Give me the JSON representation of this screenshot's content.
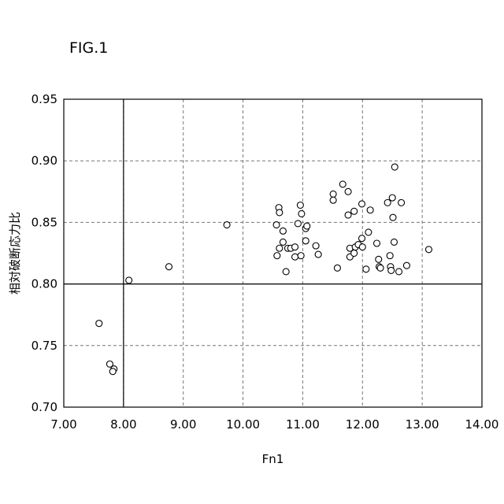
{
  "figure_label": "FIG.1",
  "chart_data": {
    "type": "scatter",
    "xlabel": "Fn1",
    "ylabel": "相対破断応力比",
    "xlim": [
      7.0,
      14.0
    ],
    "ylim": [
      0.7,
      0.95
    ],
    "xticks": [
      "7.00",
      "8.00",
      "9.00",
      "10.00",
      "11.00",
      "12.00",
      "13.00",
      "14.00"
    ],
    "yticks": [
      "0.70",
      "0.75",
      "0.80",
      "0.85",
      "0.90",
      "0.95"
    ],
    "grid": true,
    "reference_lines": {
      "x": 8.0,
      "y": 0.8
    },
    "marker": "open-circle",
    "points": [
      [
        7.59,
        0.768
      ],
      [
        7.77,
        0.735
      ],
      [
        7.84,
        0.731
      ],
      [
        7.82,
        0.729
      ],
      [
        8.09,
        0.803
      ],
      [
        8.76,
        0.814
      ],
      [
        9.73,
        0.848
      ],
      [
        10.56,
        0.848
      ],
      [
        10.6,
        0.862
      ],
      [
        10.61,
        0.858
      ],
      [
        10.61,
        0.829
      ],
      [
        10.57,
        0.823
      ],
      [
        10.67,
        0.843
      ],
      [
        10.67,
        0.834
      ],
      [
        10.72,
        0.81
      ],
      [
        10.75,
        0.829
      ],
      [
        10.8,
        0.829
      ],
      [
        10.87,
        0.83
      ],
      [
        10.87,
        0.822
      ],
      [
        10.92,
        0.849
      ],
      [
        10.96,
        0.864
      ],
      [
        10.98,
        0.857
      ],
      [
        10.97,
        0.823
      ],
      [
        11.05,
        0.845
      ],
      [
        11.07,
        0.847
      ],
      [
        11.05,
        0.835
      ],
      [
        11.22,
        0.831
      ],
      [
        11.26,
        0.824
      ],
      [
        11.51,
        0.873
      ],
      [
        11.51,
        0.868
      ],
      [
        11.58,
        0.813
      ],
      [
        11.67,
        0.881
      ],
      [
        11.76,
        0.875
      ],
      [
        11.76,
        0.856
      ],
      [
        11.79,
        0.829
      ],
      [
        11.79,
        0.822
      ],
      [
        11.86,
        0.859
      ],
      [
        11.86,
        0.825
      ],
      [
        11.88,
        0.83
      ],
      [
        11.93,
        0.832
      ],
      [
        11.99,
        0.865
      ],
      [
        11.99,
        0.837
      ],
      [
        12.0,
        0.83
      ],
      [
        12.06,
        0.812
      ],
      [
        12.1,
        0.842
      ],
      [
        12.13,
        0.86
      ],
      [
        12.24,
        0.833
      ],
      [
        12.27,
        0.82
      ],
      [
        12.28,
        0.814
      ],
      [
        12.3,
        0.813
      ],
      [
        12.42,
        0.866
      ],
      [
        12.46,
        0.823
      ],
      [
        12.47,
        0.814
      ],
      [
        12.48,
        0.811
      ],
      [
        12.5,
        0.87
      ],
      [
        12.51,
        0.854
      ],
      [
        12.53,
        0.834
      ],
      [
        12.54,
        0.895
      ],
      [
        12.61,
        0.81
      ],
      [
        12.65,
        0.866
      ],
      [
        12.74,
        0.815
      ],
      [
        13.11,
        0.828
      ]
    ]
  }
}
